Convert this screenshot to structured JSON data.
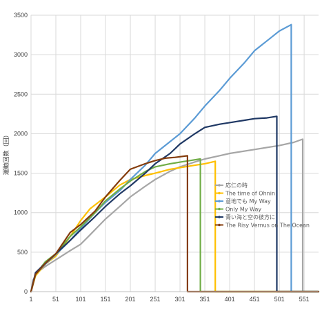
{
  "chart_data": {
    "type": "line",
    "title": "",
    "xlabel": "",
    "ylabel": "運動回数（回）",
    "xlim": [
      1,
      580
    ],
    "ylim": [
      0,
      3500
    ],
    "x_ticks": [
      "1",
      "51",
      "101",
      "151",
      "201",
      "251",
      "301",
      "351",
      "401",
      "451",
      "501",
      "551"
    ],
    "y_ticks": [
      "0",
      "500",
      "1000",
      "1500",
      "2000",
      "2500",
      "3000",
      "3500"
    ],
    "grid": true,
    "legend_position": "center-right",
    "series": [
      {
        "name": "応仁の時",
        "color": "#a6a6a6",
        "points": [
          [
            1,
            0
          ],
          [
            5,
            150
          ],
          [
            15,
            250
          ],
          [
            30,
            320
          ],
          [
            50,
            400
          ],
          [
            80,
            520
          ],
          [
            101,
            600
          ],
          [
            120,
            720
          ],
          [
            151,
            920
          ],
          [
            180,
            1080
          ],
          [
            201,
            1200
          ],
          [
            230,
            1330
          ],
          [
            251,
            1420
          ],
          [
            280,
            1520
          ],
          [
            301,
            1580
          ],
          [
            330,
            1640
          ],
          [
            351,
            1680
          ],
          [
            380,
            1720
          ],
          [
            401,
            1750
          ],
          [
            451,
            1800
          ],
          [
            501,
            1850
          ],
          [
            530,
            1890
          ],
          [
            548,
            1930
          ],
          [
            548,
            0
          ]
        ]
      },
      {
        "name": "The time of Ohnin",
        "color": "#ffc000",
        "points": [
          [
            1,
            0
          ],
          [
            10,
            200
          ],
          [
            30,
            350
          ],
          [
            51,
            450
          ],
          [
            80,
            700
          ],
          [
            101,
            900
          ],
          [
            120,
            1050
          ],
          [
            151,
            1200
          ],
          [
            180,
            1350
          ],
          [
            201,
            1420
          ],
          [
            231,
            1470
          ],
          [
            251,
            1500
          ],
          [
            281,
            1550
          ],
          [
            301,
            1570
          ],
          [
            331,
            1600
          ],
          [
            351,
            1620
          ],
          [
            372,
            1650
          ],
          [
            372,
            0
          ]
        ]
      },
      {
        "name": "意地でも My Way",
        "color": "#5b9bd5",
        "points": [
          [
            1,
            0
          ],
          [
            10,
            220
          ],
          [
            30,
            350
          ],
          [
            51,
            470
          ],
          [
            80,
            650
          ],
          [
            101,
            800
          ],
          [
            130,
            1000
          ],
          [
            151,
            1130
          ],
          [
            180,
            1280
          ],
          [
            201,
            1420
          ],
          [
            231,
            1600
          ],
          [
            251,
            1750
          ],
          [
            281,
            1900
          ],
          [
            301,
            2000
          ],
          [
            331,
            2200
          ],
          [
            351,
            2350
          ],
          [
            381,
            2550
          ],
          [
            401,
            2700
          ],
          [
            431,
            2900
          ],
          [
            451,
            3050
          ],
          [
            481,
            3200
          ],
          [
            501,
            3300
          ],
          [
            525,
            3380
          ],
          [
            525,
            0
          ]
        ]
      },
      {
        "name": "Only My Way",
        "color": "#70ad47",
        "points": [
          [
            1,
            0
          ],
          [
            10,
            220
          ],
          [
            30,
            380
          ],
          [
            51,
            480
          ],
          [
            80,
            700
          ],
          [
            101,
            820
          ],
          [
            130,
            1000
          ],
          [
            151,
            1150
          ],
          [
            180,
            1300
          ],
          [
            201,
            1400
          ],
          [
            231,
            1520
          ],
          [
            251,
            1580
          ],
          [
            281,
            1620
          ],
          [
            301,
            1640
          ],
          [
            321,
            1660
          ],
          [
            342,
            1680
          ],
          [
            342,
            0
          ]
        ]
      },
      {
        "name": "青い海と空の彼方に",
        "color": "#1f3864",
        "points": [
          [
            1,
            0
          ],
          [
            10,
            240
          ],
          [
            30,
            360
          ],
          [
            51,
            480
          ],
          [
            80,
            650
          ],
          [
            101,
            780
          ],
          [
            130,
            950
          ],
          [
            151,
            1080
          ],
          [
            180,
            1240
          ],
          [
            201,
            1340
          ],
          [
            231,
            1500
          ],
          [
            251,
            1620
          ],
          [
            281,
            1750
          ],
          [
            301,
            1870
          ],
          [
            331,
            2000
          ],
          [
            351,
            2080
          ],
          [
            381,
            2120
          ],
          [
            401,
            2140
          ],
          [
            431,
            2170
          ],
          [
            451,
            2190
          ],
          [
            476,
            2200
          ],
          [
            496,
            2220
          ],
          [
            496,
            0
          ]
        ]
      },
      {
        "name": "The Risy Vernus on The Ocean",
        "color": "#843c0c",
        "points": [
          [
            1,
            0
          ],
          [
            10,
            220
          ],
          [
            30,
            360
          ],
          [
            51,
            480
          ],
          [
            80,
            750
          ],
          [
            101,
            850
          ],
          [
            130,
            1020
          ],
          [
            151,
            1200
          ],
          [
            180,
            1410
          ],
          [
            201,
            1550
          ],
          [
            231,
            1620
          ],
          [
            251,
            1660
          ],
          [
            271,
            1690
          ],
          [
            291,
            1700
          ],
          [
            316,
            1720
          ],
          [
            316,
            0
          ]
        ]
      }
    ]
  }
}
